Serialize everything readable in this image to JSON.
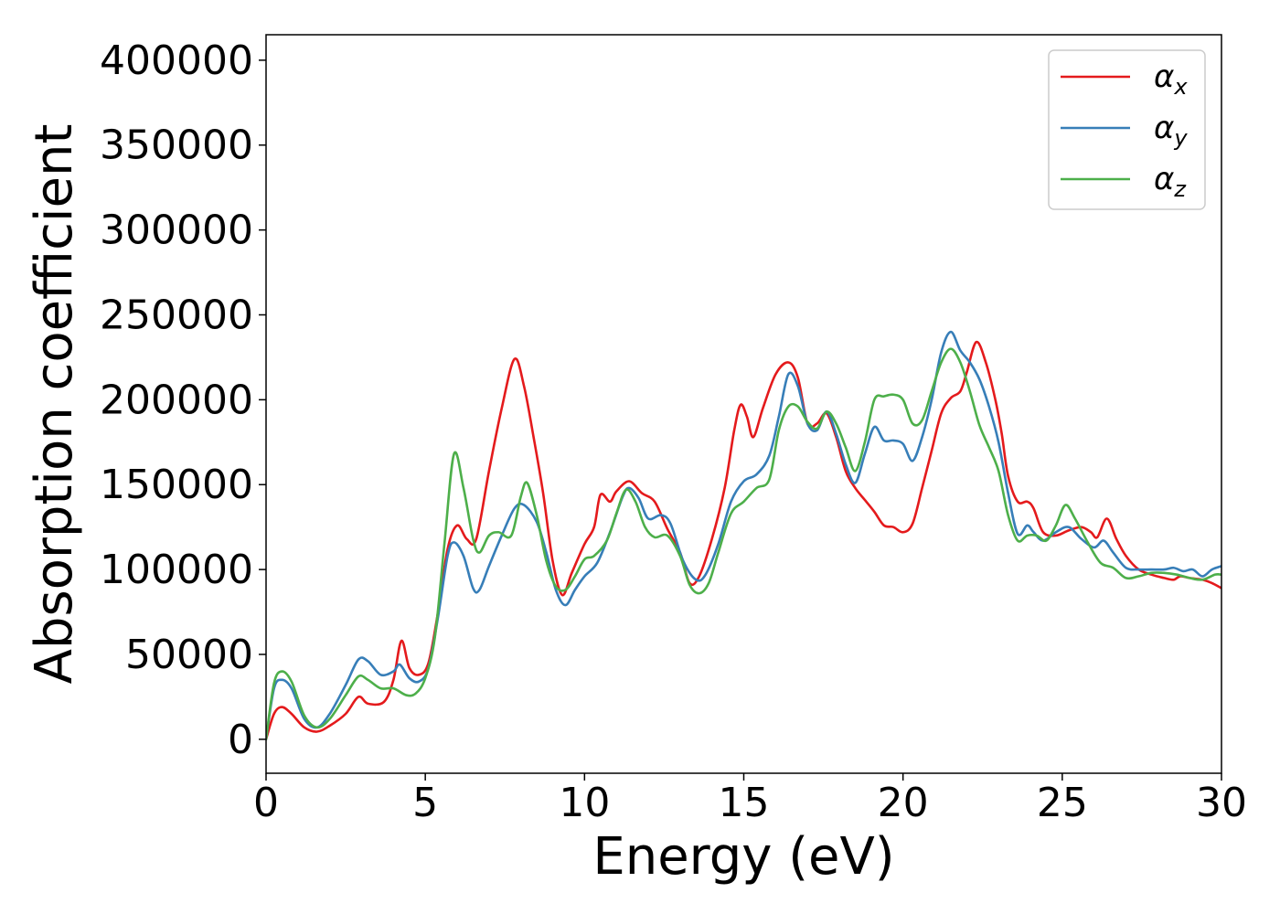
{
  "chart_data": {
    "type": "line",
    "title": "",
    "xlabel": "Energy (eV)",
    "ylabel": "Absorption coefficient",
    "xlim": [
      0,
      30
    ],
    "ylim": [
      -20000,
      415000
    ],
    "x_ticks": [
      0,
      5,
      10,
      15,
      20,
      25,
      30
    ],
    "y_ticks": [
      0,
      50000,
      100000,
      150000,
      200000,
      250000,
      300000,
      350000,
      400000
    ],
    "grid": false,
    "legend_position": "top-right",
    "series": [
      {
        "name": "α",
        "subscript": "x",
        "color": "#e41a1c",
        "points": [
          [
            0,
            0
          ],
          [
            0.25,
            15000
          ],
          [
            0.5,
            19000
          ],
          [
            0.8,
            15000
          ],
          [
            1.2,
            7000
          ],
          [
            1.6,
            4500
          ],
          [
            2.0,
            8000
          ],
          [
            2.5,
            15000
          ],
          [
            2.9,
            25000
          ],
          [
            3.2,
            21000
          ],
          [
            3.7,
            22000
          ],
          [
            4.0,
            35000
          ],
          [
            4.25,
            58000
          ],
          [
            4.5,
            42000
          ],
          [
            4.8,
            38000
          ],
          [
            5.1,
            45000
          ],
          [
            5.4,
            75000
          ],
          [
            5.7,
            112000
          ],
          [
            6.0,
            126000
          ],
          [
            6.3,
            118000
          ],
          [
            6.6,
            118000
          ],
          [
            7.0,
            158000
          ],
          [
            7.4,
            195000
          ],
          [
            7.8,
            224000
          ],
          [
            8.1,
            208000
          ],
          [
            8.4,
            178000
          ],
          [
            8.7,
            145000
          ],
          [
            9.0,
            105000
          ],
          [
            9.3,
            85000
          ],
          [
            9.6,
            98000
          ],
          [
            10.0,
            115000
          ],
          [
            10.3,
            125000
          ],
          [
            10.5,
            144000
          ],
          [
            10.8,
            140000
          ],
          [
            11.0,
            146000
          ],
          [
            11.4,
            152000
          ],
          [
            11.8,
            145000
          ],
          [
            12.2,
            140000
          ],
          [
            12.6,
            124000
          ],
          [
            13.0,
            110000
          ],
          [
            13.3,
            92000
          ],
          [
            13.6,
            96000
          ],
          [
            14.0,
            118000
          ],
          [
            14.4,
            148000
          ],
          [
            14.7,
            182000
          ],
          [
            14.9,
            197000
          ],
          [
            15.1,
            190000
          ],
          [
            15.3,
            178000
          ],
          [
            15.6,
            195000
          ],
          [
            16.0,
            215000
          ],
          [
            16.4,
            222000
          ],
          [
            16.7,
            213000
          ],
          [
            17.0,
            186000
          ],
          [
            17.3,
            186000
          ],
          [
            17.6,
            192000
          ],
          [
            17.9,
            178000
          ],
          [
            18.2,
            158000
          ],
          [
            18.5,
            148000
          ],
          [
            18.8,
            141000
          ],
          [
            19.1,
            134000
          ],
          [
            19.4,
            126000
          ],
          [
            19.7,
            125000
          ],
          [
            20.0,
            122000
          ],
          [
            20.3,
            127000
          ],
          [
            20.6,
            148000
          ],
          [
            20.9,
            170000
          ],
          [
            21.2,
            192000
          ],
          [
            21.5,
            201000
          ],
          [
            21.8,
            205000
          ],
          [
            22.0,
            216000
          ],
          [
            22.3,
            234000
          ],
          [
            22.6,
            222000
          ],
          [
            22.9,
            200000
          ],
          [
            23.1,
            180000
          ],
          [
            23.3,
            155000
          ],
          [
            23.6,
            140000
          ],
          [
            23.9,
            140000
          ],
          [
            24.1,
            136000
          ],
          [
            24.4,
            122000
          ],
          [
            24.8,
            120000
          ],
          [
            25.2,
            123000
          ],
          [
            25.6,
            125000
          ],
          [
            25.9,
            122000
          ],
          [
            26.1,
            119000
          ],
          [
            26.4,
            130000
          ],
          [
            26.7,
            118000
          ],
          [
            27.0,
            108000
          ],
          [
            27.4,
            100000
          ],
          [
            27.8,
            97000
          ],
          [
            28.2,
            95000
          ],
          [
            28.5,
            94000
          ],
          [
            28.7,
            96000
          ],
          [
            29.0,
            95000
          ],
          [
            29.4,
            94000
          ],
          [
            29.7,
            92000
          ],
          [
            30.0,
            89000
          ]
        ]
      },
      {
        "name": "α",
        "subscript": "y",
        "color": "#377eb8",
        "points": [
          [
            0,
            0
          ],
          [
            0.25,
            30000
          ],
          [
            0.5,
            35000
          ],
          [
            0.8,
            30000
          ],
          [
            1.2,
            12000
          ],
          [
            1.6,
            7000
          ],
          [
            2.0,
            15000
          ],
          [
            2.5,
            32000
          ],
          [
            2.9,
            47000
          ],
          [
            3.2,
            46000
          ],
          [
            3.6,
            38000
          ],
          [
            4.0,
            40000
          ],
          [
            4.2,
            44000
          ],
          [
            4.5,
            36000
          ],
          [
            4.8,
            34000
          ],
          [
            5.1,
            42000
          ],
          [
            5.4,
            72000
          ],
          [
            5.7,
            108000
          ],
          [
            5.9,
            116000
          ],
          [
            6.2,
            108000
          ],
          [
            6.5,
            89000
          ],
          [
            6.7,
            88000
          ],
          [
            7.0,
            102000
          ],
          [
            7.4,
            120000
          ],
          [
            7.8,
            136000
          ],
          [
            8.1,
            138000
          ],
          [
            8.5,
            128000
          ],
          [
            8.8,
            110000
          ],
          [
            9.1,
            88000
          ],
          [
            9.4,
            79000
          ],
          [
            9.7,
            88000
          ],
          [
            10.0,
            96000
          ],
          [
            10.4,
            104000
          ],
          [
            10.8,
            122000
          ],
          [
            11.2,
            143000
          ],
          [
            11.4,
            148000
          ],
          [
            11.7,
            142000
          ],
          [
            12.0,
            130000
          ],
          [
            12.4,
            132000
          ],
          [
            12.7,
            127000
          ],
          [
            13.1,
            105000
          ],
          [
            13.5,
            94000
          ],
          [
            13.8,
            97000
          ],
          [
            14.2,
            115000
          ],
          [
            14.6,
            140000
          ],
          [
            15.0,
            152000
          ],
          [
            15.4,
            156000
          ],
          [
            15.8,
            167000
          ],
          [
            16.1,
            190000
          ],
          [
            16.4,
            215000
          ],
          [
            16.7,
            208000
          ],
          [
            17.0,
            186000
          ],
          [
            17.3,
            182000
          ],
          [
            17.6,
            193000
          ],
          [
            17.9,
            180000
          ],
          [
            18.2,
            162000
          ],
          [
            18.5,
            151000
          ],
          [
            18.8,
            168000
          ],
          [
            19.1,
            184000
          ],
          [
            19.4,
            176000
          ],
          [
            19.7,
            176000
          ],
          [
            20.0,
            174000
          ],
          [
            20.3,
            164000
          ],
          [
            20.6,
            178000
          ],
          [
            20.9,
            200000
          ],
          [
            21.2,
            228000
          ],
          [
            21.5,
            240000
          ],
          [
            21.8,
            229000
          ],
          [
            22.1,
            222000
          ],
          [
            22.4,
            212000
          ],
          [
            22.7,
            196000
          ],
          [
            23.0,
            175000
          ],
          [
            23.3,
            145000
          ],
          [
            23.6,
            121000
          ],
          [
            23.9,
            126000
          ],
          [
            24.1,
            122000
          ],
          [
            24.4,
            117000
          ],
          [
            24.8,
            122000
          ],
          [
            25.2,
            125000
          ],
          [
            25.6,
            118000
          ],
          [
            26.0,
            113000
          ],
          [
            26.3,
            117000
          ],
          [
            26.6,
            110000
          ],
          [
            27.0,
            101000
          ],
          [
            27.4,
            100000
          ],
          [
            27.8,
            100000
          ],
          [
            28.2,
            100000
          ],
          [
            28.5,
            101000
          ],
          [
            28.8,
            99000
          ],
          [
            29.1,
            100000
          ],
          [
            29.4,
            96000
          ],
          [
            29.7,
            100000
          ],
          [
            30.0,
            102000
          ]
        ]
      },
      {
        "name": "α",
        "subscript": "z",
        "color": "#4daf4a",
        "points": [
          [
            0,
            0
          ],
          [
            0.25,
            33000
          ],
          [
            0.5,
            40000
          ],
          [
            0.8,
            34000
          ],
          [
            1.2,
            14000
          ],
          [
            1.6,
            7000
          ],
          [
            2.0,
            12000
          ],
          [
            2.5,
            26000
          ],
          [
            2.9,
            37000
          ],
          [
            3.2,
            35000
          ],
          [
            3.6,
            30000
          ],
          [
            4.0,
            30000
          ],
          [
            4.4,
            26000
          ],
          [
            4.7,
            27000
          ],
          [
            5.0,
            36000
          ],
          [
            5.3,
            60000
          ],
          [
            5.6,
            115000
          ],
          [
            5.9,
            168000
          ],
          [
            6.2,
            148000
          ],
          [
            6.5,
            118000
          ],
          [
            6.7,
            110000
          ],
          [
            7.0,
            120000
          ],
          [
            7.3,
            122000
          ],
          [
            7.7,
            120000
          ],
          [
            8.0,
            143000
          ],
          [
            8.2,
            151000
          ],
          [
            8.5,
            132000
          ],
          [
            8.8,
            105000
          ],
          [
            9.1,
            90000
          ],
          [
            9.4,
            88000
          ],
          [
            9.7,
            96000
          ],
          [
            10.0,
            106000
          ],
          [
            10.3,
            108000
          ],
          [
            10.7,
            117000
          ],
          [
            11.0,
            133000
          ],
          [
            11.3,
            147000
          ],
          [
            11.6,
            140000
          ],
          [
            11.9,
            125000
          ],
          [
            12.2,
            119000
          ],
          [
            12.6,
            120000
          ],
          [
            13.0,
            108000
          ],
          [
            13.3,
            91000
          ],
          [
            13.6,
            86000
          ],
          [
            13.9,
            92000
          ],
          [
            14.2,
            110000
          ],
          [
            14.6,
            133000
          ],
          [
            15.0,
            140000
          ],
          [
            15.4,
            148000
          ],
          [
            15.8,
            153000
          ],
          [
            16.1,
            182000
          ],
          [
            16.4,
            196000
          ],
          [
            16.7,
            196000
          ],
          [
            17.0,
            187000
          ],
          [
            17.3,
            183000
          ],
          [
            17.6,
            193000
          ],
          [
            17.9,
            186000
          ],
          [
            18.2,
            172000
          ],
          [
            18.5,
            158000
          ],
          [
            18.8,
            175000
          ],
          [
            19.1,
            200000
          ],
          [
            19.4,
            202000
          ],
          [
            19.7,
            203000
          ],
          [
            20.0,
            200000
          ],
          [
            20.3,
            186000
          ],
          [
            20.6,
            188000
          ],
          [
            20.9,
            205000
          ],
          [
            21.2,
            222000
          ],
          [
            21.5,
            230000
          ],
          [
            21.8,
            222000
          ],
          [
            22.1,
            205000
          ],
          [
            22.4,
            185000
          ],
          [
            22.7,
            172000
          ],
          [
            23.0,
            158000
          ],
          [
            23.3,
            132000
          ],
          [
            23.6,
            117000
          ],
          [
            23.9,
            120000
          ],
          [
            24.2,
            120000
          ],
          [
            24.5,
            117000
          ],
          [
            24.8,
            126000
          ],
          [
            25.1,
            138000
          ],
          [
            25.4,
            130000
          ],
          [
            25.8,
            116000
          ],
          [
            26.2,
            104000
          ],
          [
            26.6,
            101000
          ],
          [
            27.0,
            95000
          ],
          [
            27.4,
            96000
          ],
          [
            27.8,
            98000
          ],
          [
            28.2,
            98000
          ],
          [
            28.6,
            97000
          ],
          [
            29.0,
            95000
          ],
          [
            29.4,
            94000
          ],
          [
            29.8,
            97000
          ],
          [
            30.0,
            97000
          ]
        ]
      }
    ]
  }
}
